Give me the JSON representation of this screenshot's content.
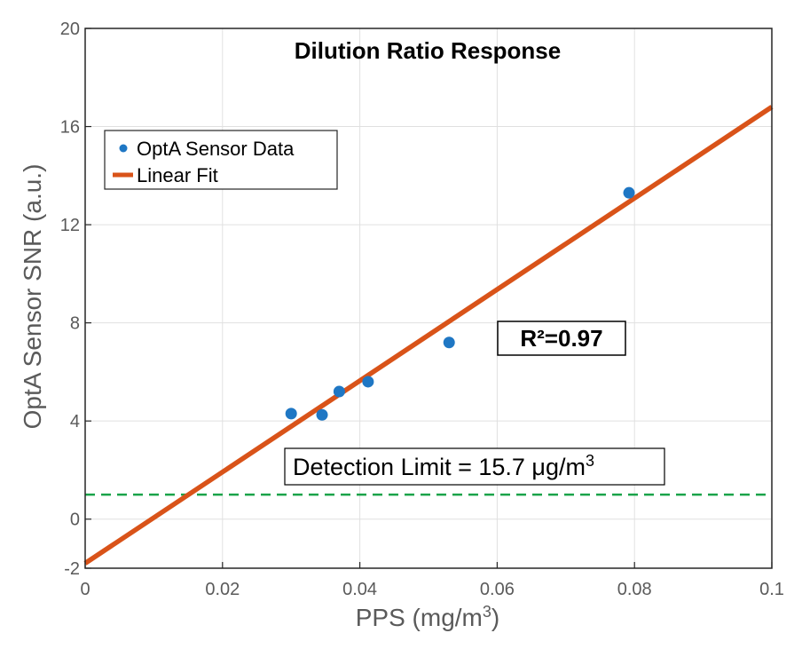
{
  "chart_data": {
    "type": "scatter",
    "title": "Dilution Ratio Response",
    "xlabel_main": "PPS (mg/m",
    "xlabel_sup": "3",
    "xlabel_end": ")",
    "ylabel": "OptA Sensor SNR (a.u.)",
    "xlim": [
      0,
      0.1
    ],
    "ylim": [
      -2,
      20
    ],
    "xticks": [
      0,
      0.02,
      0.04,
      0.06,
      0.08,
      0.1
    ],
    "xtick_labels": [
      "0",
      "0.02",
      "0.04",
      "0.06",
      "0.08",
      "0.1"
    ],
    "yticks": [
      -2,
      0,
      4,
      8,
      12,
      16,
      20
    ],
    "ytick_labels": [
      "-2",
      "0",
      "4",
      "8",
      "12",
      "16",
      "20"
    ],
    "grid": true,
    "series": [
      {
        "name": "OptA Sensor Data",
        "kind": "scatter",
        "color": "#1f77c4",
        "x": [
          0.03,
          0.0345,
          0.037,
          0.0412,
          0.053,
          0.0792
        ],
        "y": [
          4.3,
          4.25,
          5.2,
          5.6,
          7.2,
          13.3
        ]
      },
      {
        "name": "Linear Fit",
        "kind": "line",
        "color": "#d95319",
        "x": [
          0,
          0.1
        ],
        "y": [
          -1.8,
          16.8
        ]
      },
      {
        "name": "Detection Limit",
        "kind": "hline",
        "color": "#1aa34a",
        "y": 1.0
      }
    ],
    "legend_location": "top-left",
    "annotations": {
      "r2_text": "R²=0.97",
      "detection_main": "Detection Limit = 15.7 μg/m",
      "detection_sup": "3"
    }
  }
}
